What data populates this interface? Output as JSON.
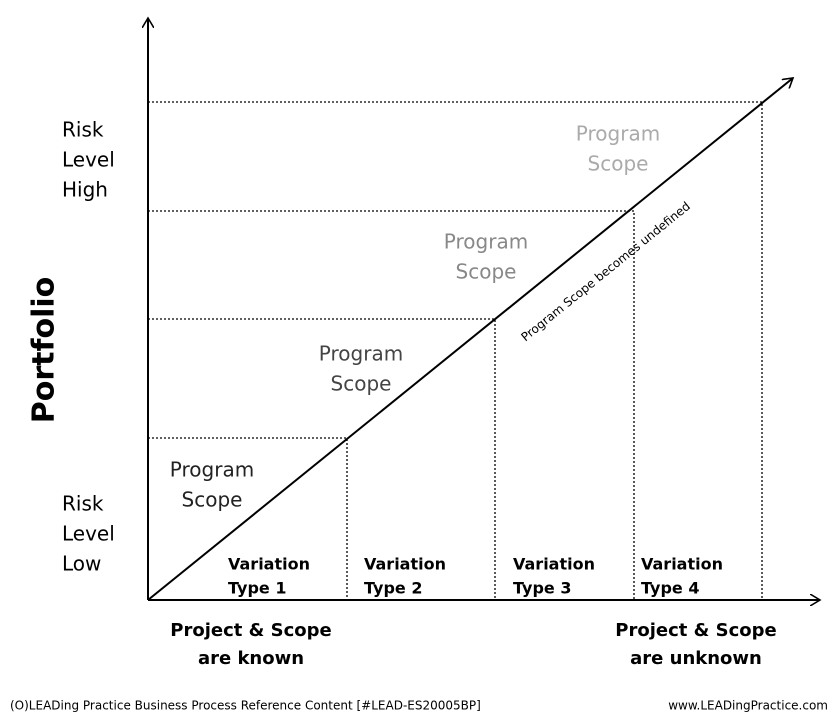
{
  "axis_label": "Portfolio",
  "risk_high": [
    "Risk",
    "Level",
    "High"
  ],
  "risk_low": [
    "Risk",
    "Level",
    "Low"
  ],
  "scopes": [
    [
      "Program",
      "Scope"
    ],
    [
      "Program",
      "Scope"
    ],
    [
      "Program",
      "Scope"
    ],
    [
      "Program",
      "Scope"
    ]
  ],
  "variations": [
    [
      "Variation",
      "Type 1"
    ],
    [
      "Variation",
      "Type 2"
    ],
    [
      "Variation",
      "Type 3"
    ],
    [
      "Variation",
      "Type 4"
    ]
  ],
  "diagonal_label": "Program Scope becomes undefined",
  "bottom_left": [
    "Project & Scope",
    "are known"
  ],
  "bottom_right": [
    "Project & Scope",
    "are unknown"
  ],
  "footer": {
    "left": "(O)LEADing Practice Business Process Reference Content [#LEAD-ES20005BP]",
    "right": "www.LEADingPractice.com"
  }
}
